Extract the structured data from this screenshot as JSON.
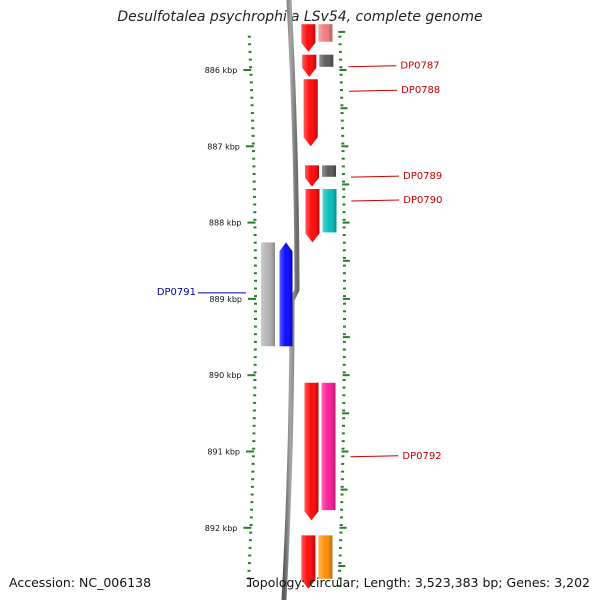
{
  "title": "Desulfotalea psychrophila LSv54, complete genome",
  "footer": {
    "accession": "Accession: NC_006138",
    "summary": "Topology: circular; Length: 3,523,383 bp; Genes: 3,202"
  },
  "colors": {
    "tick": "#2a7d2a",
    "backbone": "#888888",
    "forward_label": "#cc0000",
    "reverse_label": "#0000aa"
  },
  "scale": {
    "ticks": [
      {
        "kbp": 886,
        "label": "886 kbp"
      },
      {
        "kbp": 887,
        "label": "887 kbp"
      },
      {
        "kbp": 888,
        "label": "888 kbp"
      },
      {
        "kbp": 889,
        "label": "889 kbp"
      },
      {
        "kbp": 890,
        "label": "890 kbp"
      },
      {
        "kbp": 891,
        "label": "891 kbp"
      },
      {
        "kbp": 892,
        "label": "892 kbp"
      }
    ]
  },
  "genes": [
    {
      "label": "DP0787",
      "strand": "+",
      "start_kbp": 885.8,
      "end_kbp": 886.09,
      "color": "#ff0000",
      "cog_color": "#555555"
    },
    {
      "label": "DP0788",
      "strand": "+",
      "start_kbp": 886.12,
      "end_kbp": 887.0,
      "color": "#ff0000",
      "cog_color": ""
    },
    {
      "label": "DP0789",
      "strand": "+",
      "start_kbp": 887.25,
      "end_kbp": 887.53,
      "color": "#ff0000",
      "cog_color": "#555555"
    },
    {
      "label": "DP0790",
      "strand": "+",
      "start_kbp": 887.56,
      "end_kbp": 888.26,
      "color": "#ff0000",
      "cog_color": "#00bcbc"
    },
    {
      "label": "DP0791",
      "strand": "-",
      "start_kbp": 888.26,
      "end_kbp": 889.62,
      "color": "#0000ff",
      "cog_color": "#b0b0b0"
    },
    {
      "label": "DP0792",
      "strand": "+",
      "start_kbp": 890.1,
      "end_kbp": 891.9,
      "color": "#ff0000",
      "cog_color": "#ff1493"
    }
  ],
  "partial_genes": [
    {
      "strand": "+",
      "start_kbp": 885.4,
      "end_kbp": 885.76,
      "color": "#ff0000",
      "cog_color": "#f07878"
    },
    {
      "strand": "+",
      "start_kbp": 892.1,
      "end_kbp": 892.8,
      "color": "#ff0000",
      "cog_color": "#ff8c00"
    }
  ]
}
